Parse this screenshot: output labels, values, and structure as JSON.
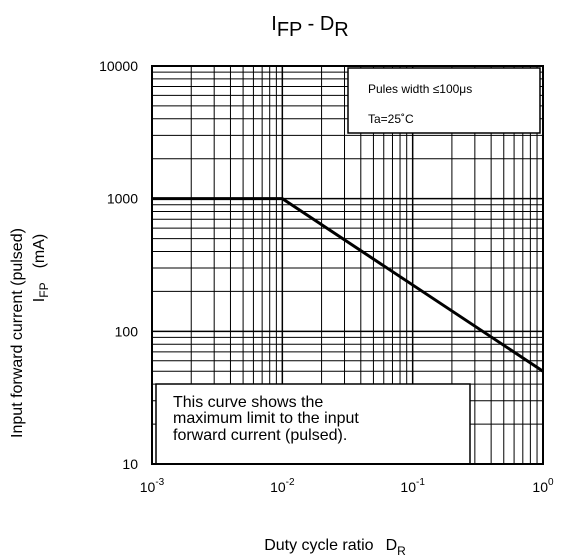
{
  "chart_data": {
    "type": "line",
    "title": {
      "main1": "I",
      "sub1": "FP",
      "sep": " - ",
      "main2": "D",
      "sub2": "R"
    },
    "xlabel": {
      "text": "Duty cycle ratio",
      "symbol": "D",
      "sub": "R"
    },
    "ylabel": {
      "line1": "Input forward current (pulsed)",
      "symbol": "I",
      "sub": "FP",
      "unit": "(mA)"
    },
    "x_scale": "log",
    "y_scale": "log",
    "xlim": [
      0.001,
      1
    ],
    "ylim": [
      10,
      10000
    ],
    "grid": true,
    "x_ticks": [
      {
        "value": 0.001,
        "base": "10",
        "exp": "-3"
      },
      {
        "value": 0.01,
        "base": "10",
        "exp": "-2"
      },
      {
        "value": 0.1,
        "base": "10",
        "exp": "-1"
      },
      {
        "value": 1,
        "base": "10",
        "exp": "0"
      }
    ],
    "y_ticks": [
      {
        "value": 10,
        "label": "10"
      },
      {
        "value": 100,
        "label": "100"
      },
      {
        "value": 1000,
        "label": "1000"
      },
      {
        "value": 10000,
        "label": "10000"
      }
    ],
    "series": [
      {
        "x": [
          0.001,
          0.01,
          1
        ],
        "y": [
          1000,
          1000,
          50
        ]
      }
    ],
    "legend_box": {
      "line1": "Pules width ≤100μs",
      "line2": "Ta=25˚C",
      "position": "top-right"
    },
    "note_box": {
      "lines": [
        "This curve shows the",
        "maximum limit to the input",
        "forward current (pulsed)."
      ],
      "position": "bottom-left"
    }
  }
}
